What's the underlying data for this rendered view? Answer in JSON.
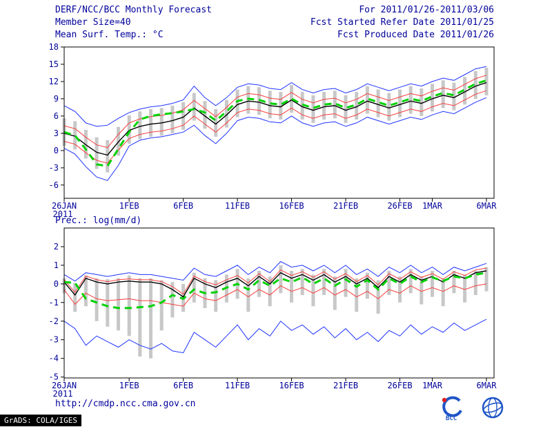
{
  "header": {
    "title": "DERF/NCC/BCC Monthly Forecast",
    "member_size": "Member Size=40",
    "for_range": "For 2011/01/26-2011/03/06",
    "fcst_refer": "Fcst Started Refer Date 2011/01/25",
    "fcst_produced": "Fcst Produced Date 2011/01/26"
  },
  "footer": {
    "url": "http://cmdp.ncc.cma.gov.cn",
    "grads_credit": "GrADS: COLA/IGES",
    "logos": [
      {
        "label": "BCC"
      },
      {
        "label": ""
      }
    ]
  },
  "colors": {
    "text": "#00009b",
    "blue_line": "#1e32ff",
    "red_line": "#fa3c3c",
    "black_line": "#000000",
    "green_dash": "#00d200",
    "spread_bar": "#c8c8c8"
  },
  "chart_data": [
    {
      "panel_name": "temperature-panel",
      "type": "line",
      "title": "Mean Surf. Temp.: °C",
      "ylabel": "°C",
      "x_start": "26JAN2011",
      "x_end": "6MAR2011",
      "ylim": [
        -8.3,
        18
      ],
      "yticks": [
        -6,
        -3,
        0,
        3,
        6,
        9,
        12,
        15,
        18
      ],
      "xticks": [
        {
          "day": 0,
          "label": "26JAN",
          "sub": "2011"
        },
        {
          "day": 6,
          "label": "1FEB"
        },
        {
          "day": 11,
          "label": "6FEB"
        },
        {
          "day": 16,
          "label": "11FEB"
        },
        {
          "day": 21,
          "label": "16FEB"
        },
        {
          "day": 26,
          "label": "21FEB"
        },
        {
          "day": 31,
          "label": "26FEB"
        },
        {
          "day": 34,
          "label": "1MAR"
        },
        {
          "day": 39,
          "label": "6MAR"
        }
      ],
      "bars": {
        "color": "#c8c8c8",
        "low": [
          0.8,
          0.2,
          -1.4,
          -3.2,
          -3.8,
          -0.9,
          1.2,
          2.0,
          2.4,
          2.6,
          3.0,
          3.6,
          5.2,
          3.8,
          2.4,
          4.0,
          5.8,
          6.4,
          6.2,
          5.6,
          5.4,
          6.6,
          5.4,
          4.8,
          5.4,
          5.6,
          4.8,
          5.4,
          6.4,
          5.8,
          5.2,
          5.8,
          6.4,
          6.0,
          6.8,
          7.4,
          7.0,
          8.0,
          9.0,
          9.6
        ],
        "high": [
          5.6,
          5.1,
          3.6,
          2.3,
          1.8,
          4.1,
          6.1,
          6.8,
          7.2,
          7.4,
          7.8,
          8.4,
          10.0,
          8.6,
          7.2,
          8.8,
          10.6,
          11.2,
          11.0,
          10.4,
          10.2,
          11.4,
          10.2,
          9.6,
          10.2,
          10.4,
          9.6,
          10.2,
          11.2,
          10.6,
          10.0,
          10.6,
          11.2,
          10.8,
          11.6,
          12.2,
          11.8,
          12.8,
          13.8,
          14.4
        ]
      },
      "series": [
        {
          "name": "ensemble-max",
          "color": "#1e32ff",
          "width": 1,
          "dash": "",
          "values": [
            7.8,
            6.8,
            4.8,
            4.2,
            4.4,
            5.6,
            6.6,
            7.2,
            7.6,
            7.8,
            8.2,
            8.8,
            11.2,
            9.2,
            7.8,
            9.2,
            11.0,
            11.6,
            11.4,
            10.8,
            10.6,
            11.8,
            10.6,
            10.0,
            10.6,
            10.8,
            10.0,
            10.6,
            11.6,
            11.0,
            10.4,
            11.0,
            11.6,
            11.2,
            12.0,
            12.6,
            12.2,
            13.2,
            14.2,
            14.6
          ]
        },
        {
          "name": "upper-spread",
          "color": "#fa3c3c",
          "width": 1,
          "dash": "",
          "values": [
            4.3,
            3.8,
            2.3,
            1.0,
            0.5,
            2.8,
            4.8,
            5.5,
            5.9,
            6.1,
            6.5,
            7.1,
            8.7,
            7.3,
            5.9,
            7.5,
            9.3,
            9.9,
            9.7,
            9.1,
            8.9,
            10.1,
            8.9,
            8.3,
            8.9,
            9.1,
            8.3,
            8.9,
            9.9,
            9.3,
            8.7,
            9.3,
            9.9,
            9.5,
            10.3,
            10.9,
            10.5,
            11.5,
            12.5,
            13.1
          ]
        },
        {
          "name": "lower-spread",
          "color": "#fa3c3c",
          "width": 1,
          "dash": "",
          "values": [
            1.6,
            1.1,
            -0.4,
            -1.7,
            -2.2,
            0.1,
            2.1,
            2.8,
            3.2,
            3.4,
            3.8,
            4.4,
            6.0,
            4.6,
            3.2,
            4.8,
            6.6,
            7.2,
            7.0,
            6.4,
            6.2,
            7.4,
            6.2,
            5.6,
            6.2,
            6.4,
            5.6,
            6.2,
            7.2,
            6.6,
            6.0,
            6.6,
            7.2,
            6.8,
            7.6,
            8.2,
            7.8,
            8.8,
            9.8,
            10.4
          ]
        },
        {
          "name": "ensemble-min",
          "color": "#1e32ff",
          "width": 1,
          "dash": "",
          "values": [
            0.4,
            -0.6,
            -2.8,
            -4.6,
            -5.2,
            -2.6,
            0.8,
            1.8,
            2.2,
            2.4,
            2.8,
            3.2,
            4.4,
            2.6,
            1.2,
            3.0,
            5.2,
            5.8,
            5.6,
            5.0,
            4.8,
            6.0,
            4.8,
            4.2,
            4.8,
            5.0,
            4.2,
            4.8,
            5.8,
            5.2,
            4.6,
            5.2,
            5.8,
            5.4,
            6.2,
            6.8,
            6.4,
            7.4,
            8.4,
            9.2
          ]
        },
        {
          "name": "ensemble-mean",
          "color": "#000000",
          "width": 1.4,
          "dash": "",
          "values": [
            3.0,
            2.5,
            1.0,
            -0.3,
            -0.8,
            1.5,
            3.5,
            4.2,
            4.6,
            4.8,
            5.2,
            5.8,
            7.4,
            6.0,
            4.6,
            6.2,
            8.0,
            8.6,
            8.4,
            7.8,
            7.6,
            8.8,
            7.6,
            7.0,
            7.6,
            7.8,
            7.0,
            7.6,
            8.6,
            8.0,
            7.4,
            8.0,
            8.6,
            8.2,
            9.0,
            9.6,
            9.2,
            10.2,
            11.2,
            11.8
          ]
        },
        {
          "name": "observation",
          "color": "#00d200",
          "width": 3,
          "dash": "10 7",
          "values": [
            3.2,
            2.6,
            0.2,
            -2.4,
            -2.7,
            0.3,
            3.2,
            5.4,
            6.0,
            6.3,
            6.5,
            6.8,
            7.2,
            6.6,
            5.2,
            6.8,
            8.6,
            9.0,
            8.8,
            8.2,
            8.0,
            9.0,
            8.0,
            7.4,
            8.0,
            8.2,
            7.4,
            8.0,
            9.0,
            8.4,
            7.8,
            8.4,
            9.0,
            8.6,
            9.4,
            10.0,
            9.6,
            10.6,
            11.6,
            12.2
          ]
        }
      ]
    },
    {
      "panel_name": "precipitation-panel",
      "type": "line",
      "title": "Prec.: log(mm/d)",
      "ylabel": "log(mm/d)",
      "x_start": "26JAN2011",
      "x_end": "6MAR2011",
      "ylim": [
        -5.05,
        3
      ],
      "yticks": [
        -5,
        -4,
        -3,
        -2,
        -1,
        0,
        1,
        2
      ],
      "xticks": [
        {
          "day": 0,
          "label": "26JAN",
          "sub": "2011"
        },
        {
          "day": 6,
          "label": "1FEB"
        },
        {
          "day": 11,
          "label": "6FEB"
        },
        {
          "day": 16,
          "label": "11FEB"
        },
        {
          "day": 21,
          "label": "16FEB"
        },
        {
          "day": 26,
          "label": "21FEB"
        },
        {
          "day": 31,
          "label": "26FEB"
        },
        {
          "day": 34,
          "label": "1MAR"
        },
        {
          "day": 39,
          "label": "6MAR"
        }
      ],
      "bars": {
        "color": "#c8c8c8",
        "low": [
          -0.5,
          -1.5,
          -1.2,
          -2.0,
          -2.3,
          -2.5,
          -2.8,
          -3.9,
          -4.0,
          -2.5,
          -1.8,
          -1.5,
          -1.0,
          -1.3,
          -1.5,
          -1.0,
          -0.8,
          -1.5,
          -0.7,
          -1.2,
          -0.5,
          -1.0,
          -0.6,
          -1.2,
          -0.6,
          -1.4,
          -0.7,
          -1.5,
          -0.8,
          -1.6,
          -0.6,
          -1.0,
          -0.5,
          -1.1,
          -0.7,
          -1.2,
          -0.5,
          -1.0,
          -0.6,
          -0.4
        ],
        "high": [
          0.3,
          0.05,
          0.45,
          0.3,
          0.25,
          0.3,
          0.45,
          0.3,
          0.3,
          0.2,
          0.1,
          0.0,
          0.6,
          0.3,
          0.2,
          0.5,
          0.8,
          0.3,
          0.7,
          0.4,
          1.0,
          0.7,
          0.8,
          0.5,
          0.8,
          0.4,
          0.8,
          0.3,
          0.6,
          0.2,
          0.7,
          0.4,
          0.8,
          0.4,
          0.7,
          0.3,
          0.7,
          0.5,
          0.7,
          0.9
        ]
      },
      "series": [
        {
          "name": "ensemble-max",
          "color": "#1e32ff",
          "width": 1,
          "dash": "",
          "values": [
            0.5,
            0.15,
            0.6,
            0.5,
            0.4,
            0.5,
            0.6,
            0.5,
            0.5,
            0.4,
            0.3,
            0.2,
            0.85,
            0.5,
            0.4,
            0.7,
            1.0,
            0.5,
            0.9,
            0.6,
            1.2,
            0.9,
            1.0,
            0.7,
            1.0,
            0.6,
            1.0,
            0.5,
            0.8,
            0.4,
            0.9,
            0.6,
            1.0,
            0.6,
            0.9,
            0.5,
            0.9,
            0.7,
            0.9,
            1.1
          ]
        },
        {
          "name": "upper-spread",
          "color": "#fa3c3c",
          "width": 1,
          "dash": "",
          "values": [
            0.22,
            -0.45,
            0.42,
            0.22,
            0.12,
            0.22,
            0.27,
            0.22,
            0.22,
            0.12,
            -0.15,
            -0.55,
            0.42,
            0.12,
            -0.05,
            0.22,
            0.45,
            0.05,
            0.55,
            0.12,
            0.75,
            0.45,
            0.65,
            0.35,
            0.65,
            0.25,
            0.55,
            0.12,
            0.45,
            -0.05,
            0.55,
            0.25,
            0.65,
            0.35,
            0.55,
            0.25,
            0.65,
            0.45,
            0.75,
            0.85
          ]
        },
        {
          "name": "lower-spread",
          "color": "#fa3c3c",
          "width": 1,
          "dash": "",
          "values": [
            -0.3,
            -1.1,
            -0.5,
            -0.8,
            -0.9,
            -0.85,
            -0.8,
            -0.9,
            -0.9,
            -1.0,
            -1.1,
            -1.2,
            -0.5,
            -0.8,
            -0.9,
            -0.6,
            -0.3,
            -0.7,
            -0.3,
            -0.6,
            -0.1,
            -0.4,
            -0.2,
            -0.5,
            -0.2,
            -0.6,
            -0.3,
            -0.7,
            -0.4,
            -0.8,
            -0.3,
            -0.5,
            -0.1,
            -0.4,
            -0.2,
            -0.4,
            -0.1,
            -0.3,
            -0.1,
            0.0
          ]
        },
        {
          "name": "ensemble-min",
          "color": "#1e32ff",
          "width": 1,
          "dash": "",
          "values": [
            -2.0,
            -2.4,
            -3.3,
            -2.8,
            -3.1,
            -3.4,
            -3.0,
            -3.3,
            -3.5,
            -3.2,
            -3.6,
            -3.7,
            -2.6,
            -3.0,
            -3.4,
            -2.8,
            -2.2,
            -3.0,
            -2.4,
            -2.8,
            -2.0,
            -2.5,
            -2.2,
            -2.7,
            -2.3,
            -2.9,
            -2.4,
            -3.0,
            -2.6,
            -3.1,
            -2.5,
            -2.8,
            -2.2,
            -2.7,
            -2.3,
            -2.6,
            -2.1,
            -2.5,
            -2.2,
            -1.9
          ]
        },
        {
          "name": "ensemble-mean",
          "color": "#000000",
          "width": 1.4,
          "dash": "",
          "values": [
            0.1,
            -0.6,
            0.3,
            0.1,
            0.0,
            0.1,
            0.15,
            0.1,
            0.1,
            0.0,
            -0.3,
            -0.7,
            0.3,
            0.0,
            -0.2,
            0.1,
            0.3,
            -0.1,
            0.4,
            0.0,
            0.6,
            0.3,
            0.5,
            0.2,
            0.5,
            0.1,
            0.4,
            0.0,
            0.3,
            -0.2,
            0.4,
            0.1,
            0.5,
            0.2,
            0.4,
            0.1,
            0.5,
            0.3,
            0.6,
            0.7
          ]
        },
        {
          "name": "observation",
          "color": "#00d200",
          "width": 3,
          "dash": "10 7",
          "values": [
            0.1,
            0.05,
            -0.8,
            -1.0,
            -1.2,
            -1.3,
            -1.3,
            -1.25,
            -1.2,
            -1.0,
            -0.6,
            -0.8,
            -0.3,
            -0.5,
            -0.45,
            -0.2,
            0.0,
            -0.3,
            0.2,
            -0.1,
            0.3,
            0.1,
            0.35,
            0.0,
            0.3,
            -0.1,
            0.25,
            -0.15,
            0.2,
            -0.3,
            0.3,
            0.0,
            0.4,
            0.1,
            0.35,
            0.15,
            0.4,
            0.3,
            0.5,
            0.6
          ]
        }
      ]
    }
  ]
}
